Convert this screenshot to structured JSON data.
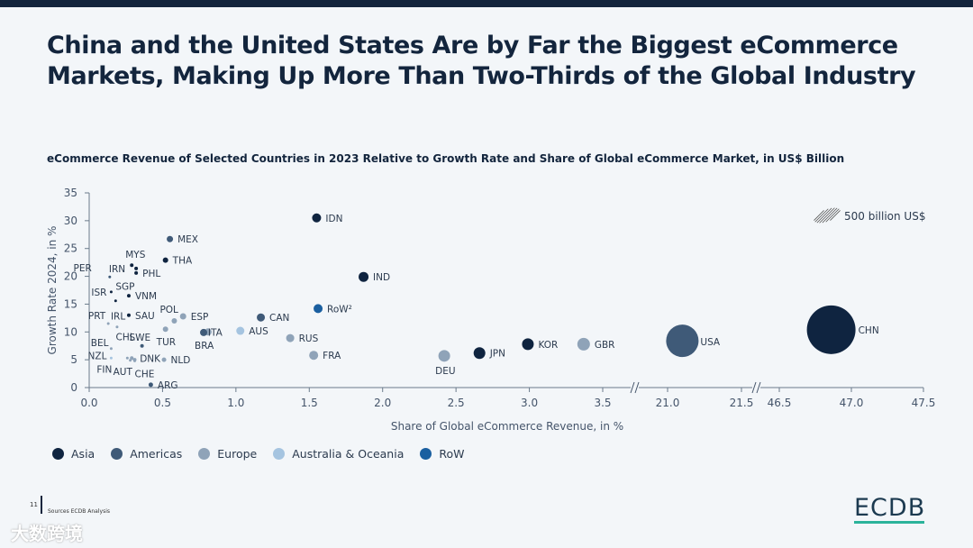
{
  "title": "China and the United States Are by Far the Biggest eCommerce Markets, Making Up More Than Two-Thirds of the Global Industry",
  "subtitle": "eCommerce Revenue of Selected Countries in 2023 Relative to Growth Rate and Share of Global eCommerce Market, in US$ Billion",
  "footer": {
    "page": "11",
    "sources": "Sources   ECDB Analysis",
    "watermark": "大数跨境",
    "logo": "ECDB"
  },
  "colors": {
    "Asia": "#0f2440",
    "Americas": "#3f5a78",
    "Europe": "#8fa3b8",
    "Australia & Oceania": "#a5c4e0",
    "RoW": "#1a5fa0"
  },
  "chart_data": {
    "type": "scatter",
    "title": "eCommerce Revenue of Selected Countries in 2023 Relative to Growth Rate and Share of Global eCommerce Market, in US$ Billion",
    "xlabel": "Share of Global eCommerce Revenue, in %",
    "ylabel": "Growth Rate 2024, in %",
    "ylim": [
      0,
      35
    ],
    "yticks": [
      "0",
      "5",
      "10",
      "15",
      "20",
      "25",
      "30",
      "35"
    ],
    "xticks": [
      "0.0",
      "0.5",
      "1.0",
      "1.5",
      "2.0",
      "2.5",
      "3.0",
      "3.5",
      "21.0",
      "21.5",
      "46.5",
      "47.0",
      "47.5"
    ],
    "x_segments": [
      [
        0,
        3.5
      ],
      [
        21.0,
        21.5
      ],
      [
        46.5,
        47.5
      ]
    ],
    "size_legend": "500 billion US$",
    "legend": [
      "Asia",
      "Americas",
      "Europe",
      "Australia & Oceania",
      "RoW"
    ],
    "legend_placement": "bottom-left",
    "points": [
      {
        "label": "CHN",
        "x": 46.86,
        "y": 10.4,
        "region": "Asia",
        "size": 27
      },
      {
        "label": "USA",
        "x": 21.1,
        "y": 8.4,
        "region": "Americas",
        "size": 18
      },
      {
        "label": "GBR",
        "x": 3.37,
        "y": 7.8,
        "region": "Europe",
        "size": 7
      },
      {
        "label": "KOR",
        "x": 2.99,
        "y": 7.8,
        "region": "Asia",
        "size": 6.5
      },
      {
        "label": "JPN",
        "x": 2.66,
        "y": 6.2,
        "region": "Asia",
        "size": 6.5
      },
      {
        "label": "DEU",
        "x": 2.42,
        "y": 5.7,
        "region": "Europe",
        "size": 6.5
      },
      {
        "label": "IND",
        "x": 1.87,
        "y": 19.9,
        "region": "Asia",
        "size": 5.5
      },
      {
        "label": "IDN",
        "x": 1.55,
        "y": 30.5,
        "region": "Asia",
        "size": 5
      },
      {
        "label": "RoW²",
        "x": 1.56,
        "y": 14.2,
        "region": "RoW",
        "size": 5
      },
      {
        "label": "FRA",
        "x": 1.53,
        "y": 5.8,
        "region": "Europe",
        "size": 5
      },
      {
        "label": "RUS",
        "x": 1.37,
        "y": 8.9,
        "region": "Europe",
        "size": 4.5
      },
      {
        "label": "CAN",
        "x": 1.17,
        "y": 12.6,
        "region": "Americas",
        "size": 4.5
      },
      {
        "label": "AUS",
        "x": 1.03,
        "y": 10.2,
        "region": "Australia & Oceania",
        "size": 4.5
      },
      {
        "label": "ITA",
        "x": 0.81,
        "y": 10.0,
        "region": "Europe",
        "size": 4
      },
      {
        "label": "BRA",
        "x": 0.78,
        "y": 9.9,
        "region": "Americas",
        "size": 4
      },
      {
        "label": "ESP",
        "x": 0.64,
        "y": 12.8,
        "region": "Europe",
        "size": 3.5
      },
      {
        "label": "POL",
        "x": 0.58,
        "y": 12.0,
        "region": "Europe",
        "size": 3
      },
      {
        "label": "TUR",
        "x": 0.52,
        "y": 10.5,
        "region": "Europe",
        "size": 3
      },
      {
        "label": "MEX",
        "x": 0.55,
        "y": 26.7,
        "region": "Americas",
        "size": 3.5
      },
      {
        "label": "THA",
        "x": 0.52,
        "y": 22.9,
        "region": "Asia",
        "size": 3
      },
      {
        "label": "NLD",
        "x": 0.51,
        "y": 5.0,
        "region": "Europe",
        "size": 2.5
      },
      {
        "label": "ARG",
        "x": 0.42,
        "y": 0.5,
        "region": "Americas",
        "size": 2.5
      },
      {
        "label": "CHL",
        "x": 0.36,
        "y": 7.5,
        "region": "Americas",
        "size": 2
      },
      {
        "label": "MYS",
        "x": 0.29,
        "y": 22.0,
        "region": "Asia",
        "size": 2
      },
      {
        "label": "IRN",
        "x": 0.32,
        "y": 21.4,
        "region": "Asia",
        "size": 2
      },
      {
        "label": "PHL",
        "x": 0.32,
        "y": 20.6,
        "region": "Asia",
        "size": 2
      },
      {
        "label": "VNM",
        "x": 0.27,
        "y": 16.5,
        "region": "Asia",
        "size": 2
      },
      {
        "label": "SAU",
        "x": 0.27,
        "y": 13.0,
        "region": "Asia",
        "size": 2
      },
      {
        "label": "SWE",
        "x": 0.31,
        "y": 5.0,
        "region": "Europe",
        "size": 2
      },
      {
        "label": "DNK",
        "x": 0.29,
        "y": 5.3,
        "region": "Europe",
        "size": 2
      },
      {
        "label": "CHE",
        "x": 0.31,
        "y": 4.8,
        "region": "Europe",
        "size": 1.5
      },
      {
        "label": "AUT",
        "x": 0.28,
        "y": 4.9,
        "region": "Europe",
        "size": 1.5
      },
      {
        "label": "FIN",
        "x": 0.26,
        "y": 5.3,
        "region": "Europe",
        "size": 1.5
      },
      {
        "label": "PER",
        "x": 0.14,
        "y": 19.9,
        "region": "Americas",
        "size": 1.5
      },
      {
        "label": "ISR",
        "x": 0.15,
        "y": 17.2,
        "region": "Asia",
        "size": 1.5
      },
      {
        "label": "SGP",
        "x": 0.18,
        "y": 15.6,
        "region": "Asia",
        "size": 1.5
      },
      {
        "label": "PRT",
        "x": 0.13,
        "y": 11.5,
        "region": "Europe",
        "size": 1.5
      },
      {
        "label": "IRL",
        "x": 0.19,
        "y": 10.9,
        "region": "Europe",
        "size": 1.5
      },
      {
        "label": "BEL",
        "x": 0.15,
        "y": 7.0,
        "region": "Europe",
        "size": 1.5
      },
      {
        "label": "NZL",
        "x": 0.15,
        "y": 5.3,
        "region": "Australia & Oceania",
        "size": 1.5
      }
    ]
  }
}
